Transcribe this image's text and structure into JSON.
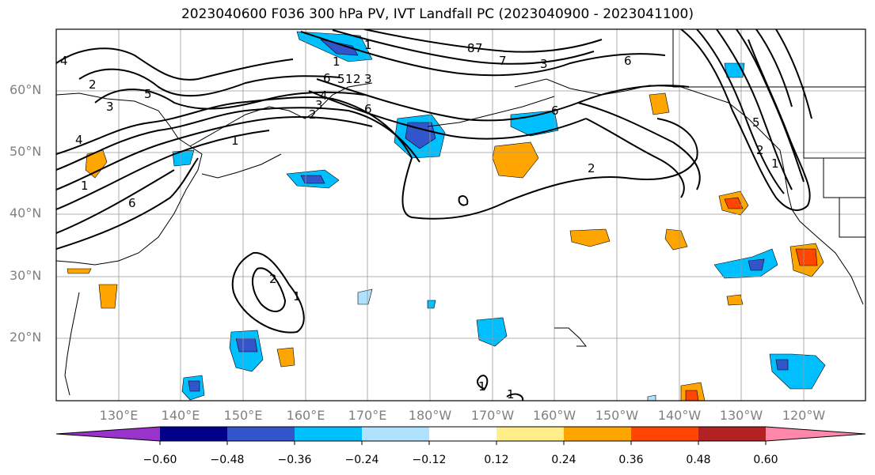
{
  "title": "2023040600 F036 300 hPa PV, IVT Landfall PC (2023040900 - 2023041100)",
  "lat_labels": [
    "60°N",
    "50°N",
    "40°N",
    "30°N",
    "20°N"
  ],
  "lon_labels": [
    "130°E",
    "140°E",
    "150°E",
    "160°E",
    "170°E",
    "180°W",
    "170°W",
    "160°W",
    "150°W",
    "140°W",
    "130°W",
    "120°W"
  ],
  "colorbar": {
    "ticks": [
      "−0.60",
      "−0.48",
      "−0.36",
      "−0.24",
      "−0.12",
      "0.12",
      "0.24",
      "0.36",
      "0.48",
      "0.60"
    ],
    "colors": [
      "#9933cc",
      "#00008b",
      "#3355cc",
      "#00bfff",
      "#b0e2ff",
      "#ffffff",
      "#ffee88",
      "#ffa500",
      "#ff4500",
      "#b22222",
      "#ff88aa"
    ]
  },
  "contour_labels": [
    "4",
    "2",
    "3",
    "5",
    "4",
    "1",
    "6",
    "2",
    "1",
    "6",
    "1",
    "1",
    "1",
    "3",
    "2",
    "1",
    "6",
    "5",
    "4",
    "3",
    "2",
    "6",
    "7",
    "8",
    "7",
    "3",
    "6",
    "2",
    "5",
    "2",
    "1",
    "1",
    "1"
  ]
}
